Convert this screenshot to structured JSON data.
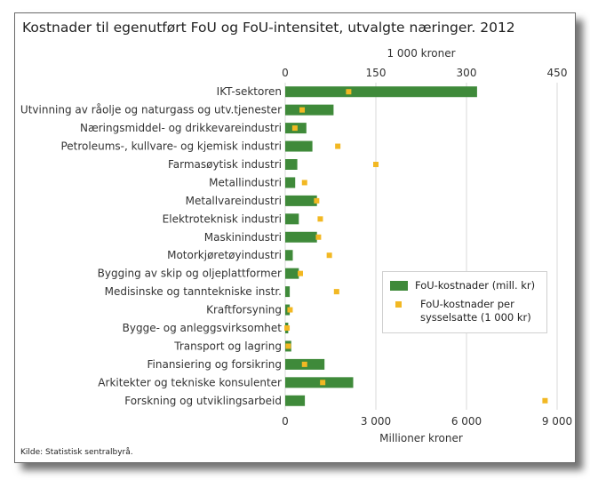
{
  "title": "Kostnader til egenutført FoU og FoU-intensitet, utvalgte næringer. 2012",
  "source": "Kilde: Statistisk sentralbyrå.",
  "colors": {
    "bar": "#3f8a3a",
    "dot": "#f2b823",
    "grid": "#d9d9d9"
  },
  "chart_data": {
    "type": "bar",
    "orientation": "horizontal",
    "title": "Kostnader til egenutført FoU og FoU-intensitet, utvalgte næringer. 2012",
    "categories": [
      "IKT-sektoren",
      "Utvinning av råolje og naturgass og utv.tjenester",
      "Næringsmiddel- og drikkevareindustri",
      "Petroleums-, kullvare- og kjemisk industri",
      "Farmasøytisk industri",
      "Metallindustri",
      "Metallvareindustri",
      "Elektroteknisk industri",
      "Maskinindustri",
      "Motorkjøretøyindustri",
      "Bygging av skip og oljeplattformer",
      "Medisinske og tanntekniske instr.",
      "Kraftforsyning",
      "Bygge- og anleggsvirksomhet",
      "Transport og lagring",
      "Finansiering og forsikring",
      "Arkitekter og tekniske konsulenter",
      "Forskning og utviklingsarbeid"
    ],
    "series": [
      {
        "name": "FoU-kostnader (mill. kr)",
        "axis": "bottom",
        "values": [
          6350,
          1600,
          700,
          900,
          400,
          330,
          1050,
          450,
          1050,
          250,
          450,
          150,
          150,
          100,
          200,
          1300,
          2250,
          650
        ]
      },
      {
        "name": "FoU-kostnader per sysselsatte (1 000 kr)",
        "axis": "top",
        "values": [
          105,
          28,
          16,
          87,
          150,
          32,
          52,
          58,
          55,
          73,
          25,
          85,
          8,
          3,
          5,
          32,
          62,
          430
        ]
      }
    ],
    "x_bottom": {
      "label": "Millioner kroner",
      "ticks": [
        "0",
        "3 000",
        "6 000",
        "9 000"
      ],
      "lim": [
        0,
        9000
      ]
    },
    "x_top": {
      "label": "1 000 kroner",
      "ticks": [
        "0",
        "150",
        "300",
        "450"
      ],
      "lim": [
        0,
        450
      ]
    },
    "grid": true,
    "legend_position": "bottom-right"
  }
}
